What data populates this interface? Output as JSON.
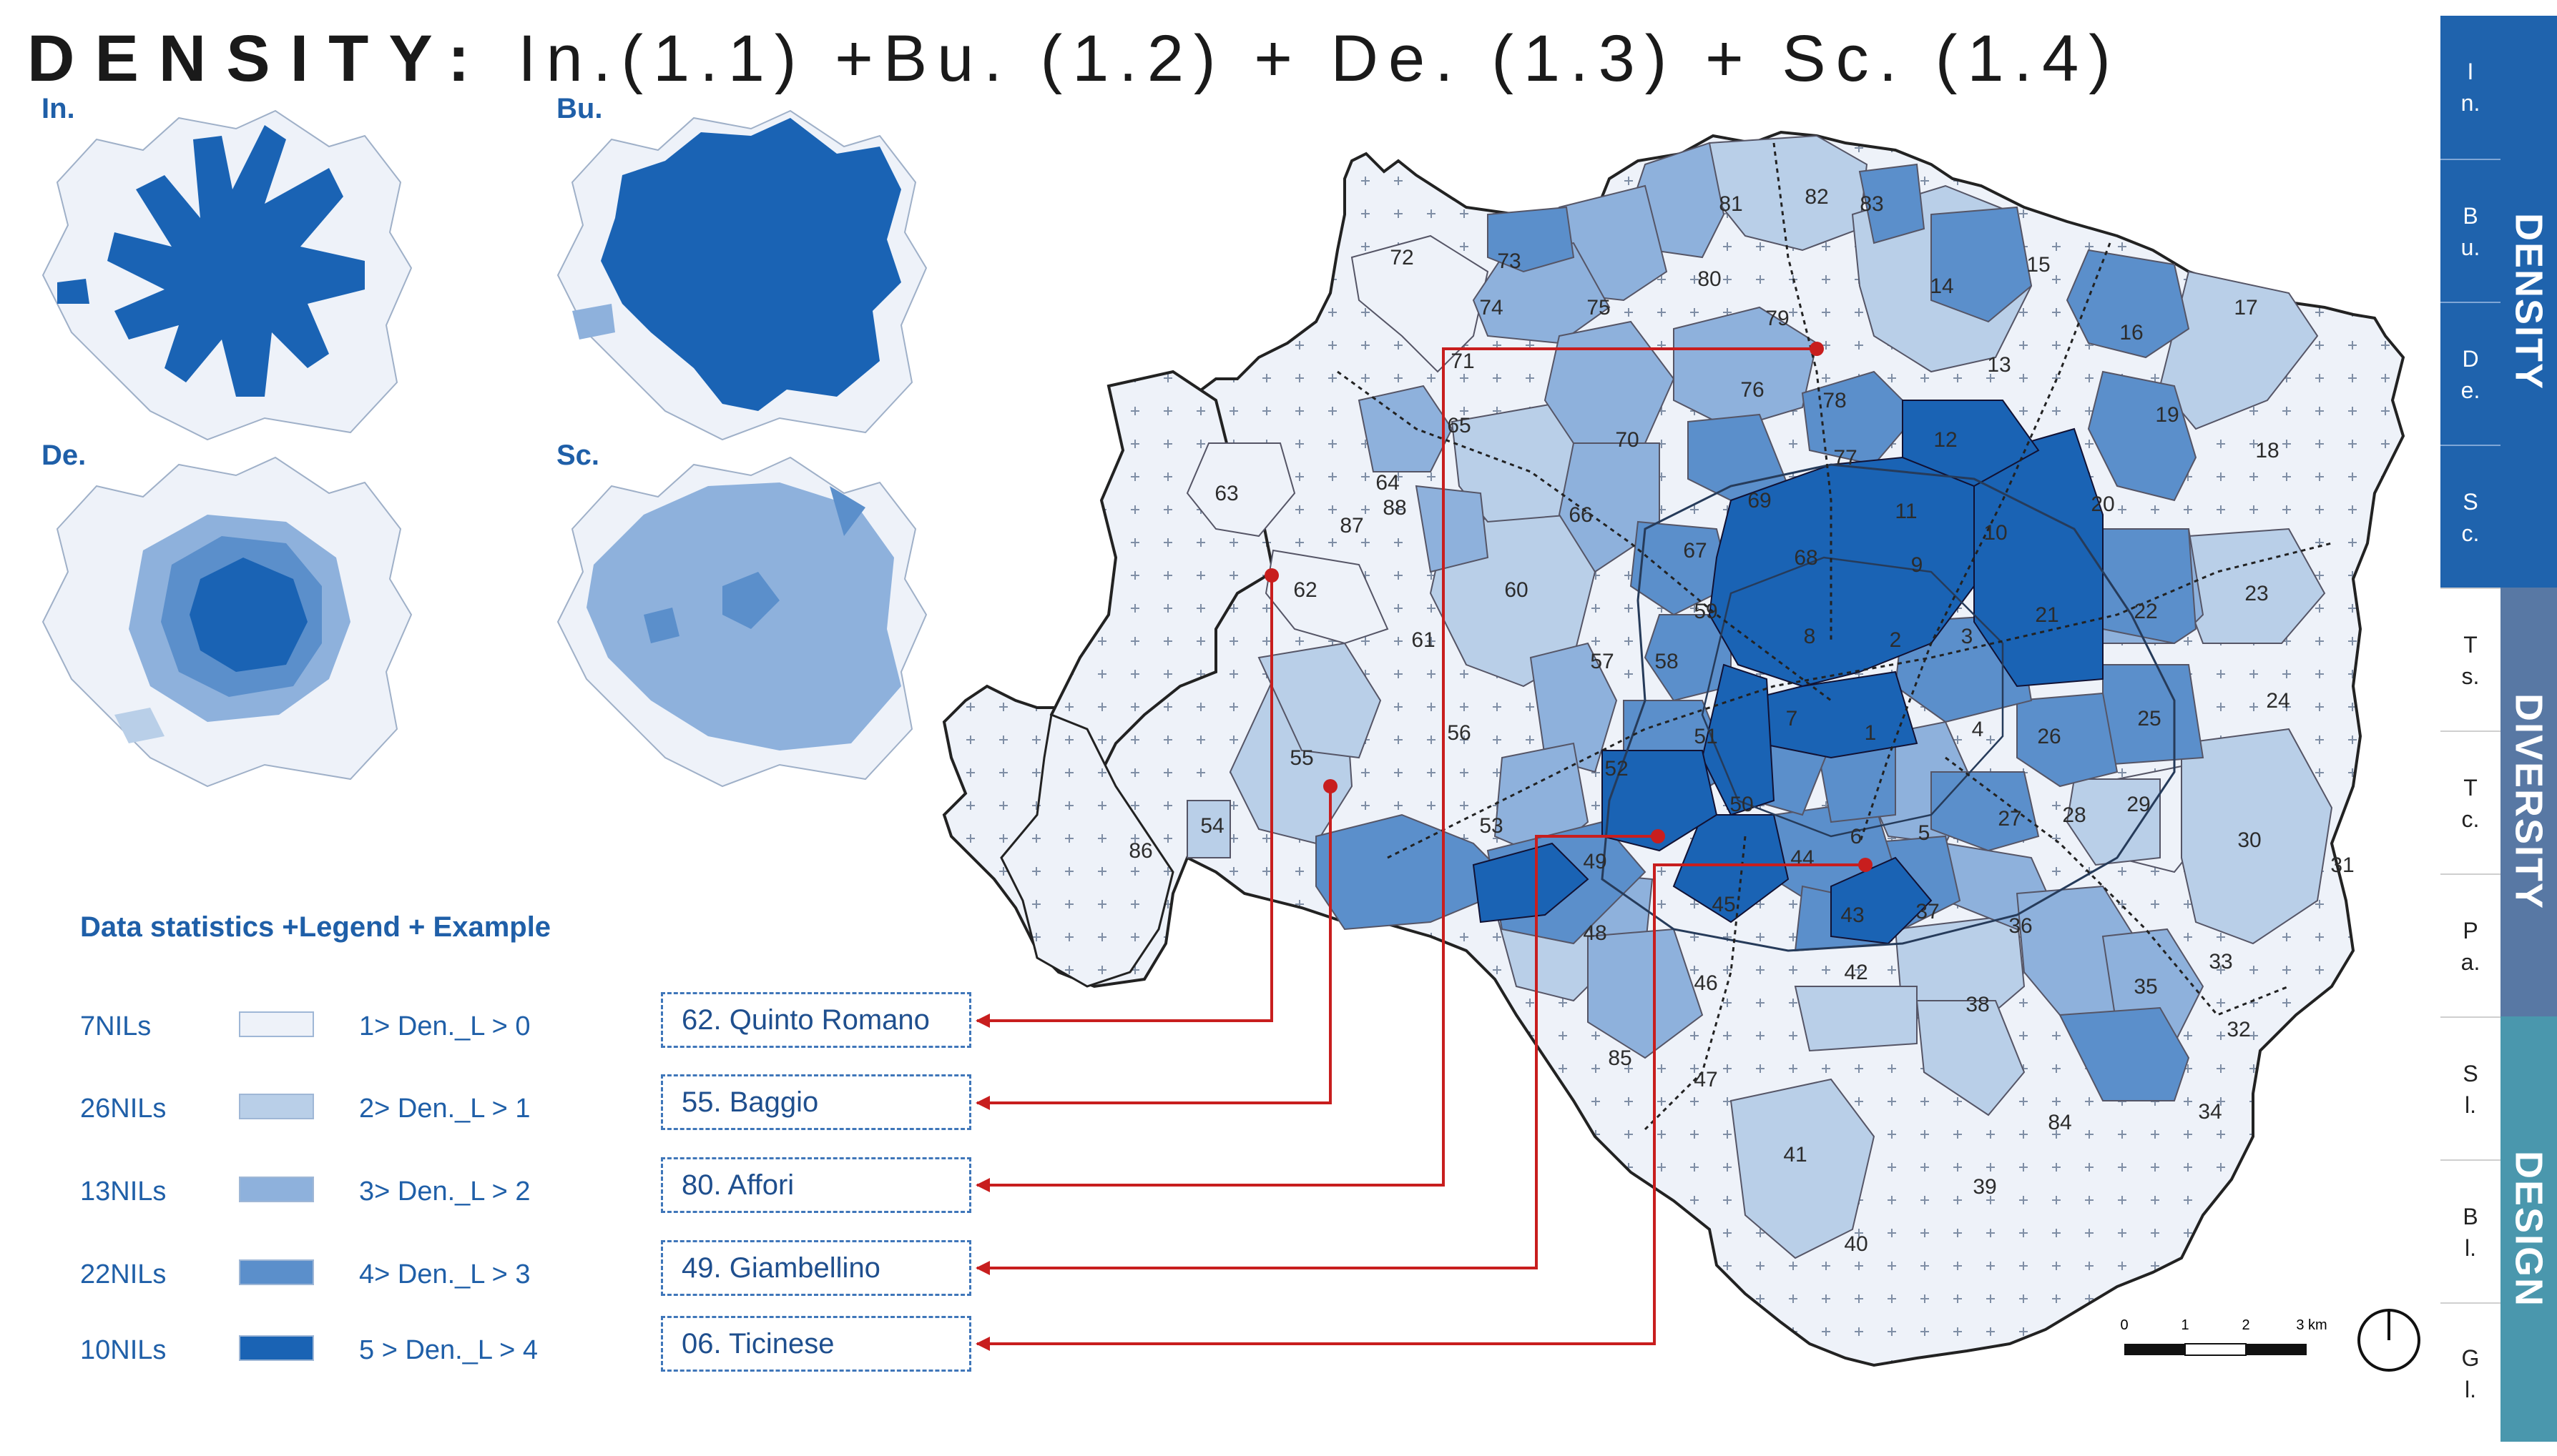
{
  "title": {
    "bold": "DENSITY:",
    "rest": "In.(1.1) +Bu. (1.2) + De. (1.3) + Sc. (1.4)"
  },
  "mini_maps": [
    {
      "label": "In."
    },
    {
      "label": "Bu."
    },
    {
      "label": "De."
    },
    {
      "label": "Sc."
    }
  ],
  "legend": {
    "heading": "Data statistics +Legend + Example",
    "rows": [
      {
        "count": "7NILs",
        "range": "1> Den._L > 0",
        "color": "#eef2f9"
      },
      {
        "count": "26NILs",
        "range": "2> Den._L > 1",
        "color": "#b9cfe8"
      },
      {
        "count": "13NILs",
        "range": "3> Den._L > 2",
        "color": "#8eb1dc"
      },
      {
        "count": "22NILs",
        "range": "4> Den._L > 3",
        "color": "#5b8fcb"
      },
      {
        "count": "10NILs",
        "range": "5 > Den._L > 4",
        "color": "#1a63b4"
      }
    ]
  },
  "examples": [
    {
      "label": "62. Quinto Romano"
    },
    {
      "label": "55. Baggio"
    },
    {
      "label": "80. Affori"
    },
    {
      "label": "49. Giambellino"
    },
    {
      "label": "06. Ticinese"
    }
  ],
  "map": {
    "numbers": [
      "1",
      "2",
      "3",
      "4",
      "5",
      "6",
      "7",
      "8",
      "9",
      "10",
      "11",
      "12",
      "13",
      "14",
      "15",
      "16",
      "17",
      "18",
      "19",
      "20",
      "21",
      "22",
      "23",
      "24",
      "25",
      "26",
      "27",
      "28",
      "29",
      "30",
      "31",
      "32",
      "33",
      "34",
      "35",
      "36",
      "37",
      "38",
      "39",
      "40",
      "41",
      "42",
      "43",
      "44",
      "45",
      "46",
      "47",
      "48",
      "49",
      "50",
      "51",
      "52",
      "53",
      "54",
      "55",
      "56",
      "57",
      "58",
      "59",
      "60",
      "61",
      "62",
      "63",
      "64",
      "65",
      "66",
      "67",
      "68",
      "69",
      "70",
      "71",
      "72",
      "73",
      "74",
      "75",
      "76",
      "77",
      "78",
      "79",
      "80",
      "81",
      "82",
      "83",
      "84",
      "85",
      "86",
      "87",
      "88"
    ],
    "scale_labels": [
      "0",
      "1",
      "2",
      "3 km"
    ]
  },
  "sidebar": {
    "cells": [
      {
        "text": [
          "I",
          "n."
        ]
      },
      {
        "text": [
          "B",
          "u."
        ]
      },
      {
        "text": [
          "D",
          "e."
        ]
      },
      {
        "text": [
          "S",
          "c."
        ]
      },
      {
        "text": [
          "T",
          "s."
        ]
      },
      {
        "text": [
          "T",
          "c."
        ]
      },
      {
        "text": [
          "P",
          "a."
        ]
      },
      {
        "text": [
          "S",
          "l."
        ]
      },
      {
        "text": [
          "B",
          "l."
        ]
      },
      {
        "text": [
          "G",
          "l."
        ]
      }
    ],
    "groups": [
      {
        "label": "DENSITY",
        "color": "#1f63ad"
      },
      {
        "label": "DIVERSITY",
        "color": "#5878a4"
      },
      {
        "label": "DESIGN",
        "color": "#4a97ad"
      }
    ]
  },
  "colors": {
    "level1": "#eef2f9",
    "level2": "#b9cfe8",
    "level3": "#8eb1dc",
    "level4": "#5b8fcb",
    "level5": "#1a63b4",
    "leader": "#c81e1e",
    "accent": "#1f5fa8"
  }
}
